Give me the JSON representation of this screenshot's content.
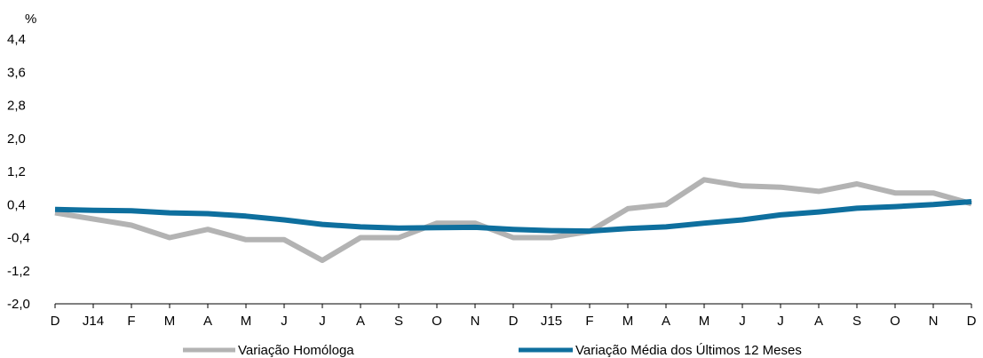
{
  "chart_data": {
    "type": "line",
    "ylabel": "%",
    "ylim": [
      -2.0,
      4.4
    ],
    "yticks": [
      -2.0,
      -1.2,
      -0.4,
      0.4,
      1.2,
      2.0,
      2.8,
      3.6,
      4.4
    ],
    "ytick_labels": [
      "-2,0",
      "-1,2",
      "-0,4",
      "0,4",
      "1,2",
      "2,0",
      "2,8",
      "3,6",
      "4,4"
    ],
    "categories": [
      "D",
      "J14",
      "F",
      "M",
      "A",
      "M",
      "J",
      "J",
      "A",
      "S",
      "O",
      "N",
      "D",
      "J15",
      "F",
      "M",
      "A",
      "M",
      "J",
      "J",
      "A",
      "S",
      "O",
      "N",
      "D"
    ],
    "series": [
      {
        "name": "Variação Homóloga",
        "color": "#b3b3b3",
        "values": [
          0.2,
          0.05,
          -0.1,
          -0.4,
          -0.2,
          -0.45,
          -0.45,
          -0.95,
          -0.4,
          -0.4,
          -0.05,
          -0.05,
          -0.4,
          -0.4,
          -0.25,
          0.3,
          0.4,
          1.0,
          0.85,
          0.82,
          0.72,
          0.9,
          0.68,
          0.68,
          0.42
        ]
      },
      {
        "name": "Variação Média dos Últimos 12 Meses",
        "color": "#0e6f9e",
        "values": [
          0.28,
          0.26,
          0.25,
          0.2,
          0.18,
          0.12,
          0.03,
          -0.08,
          -0.14,
          -0.17,
          -0.16,
          -0.15,
          -0.2,
          -0.23,
          -0.24,
          -0.18,
          -0.14,
          -0.05,
          0.03,
          0.15,
          0.22,
          0.31,
          0.35,
          0.4,
          0.47
        ]
      }
    ],
    "grid": false,
    "legend": "bottom"
  }
}
